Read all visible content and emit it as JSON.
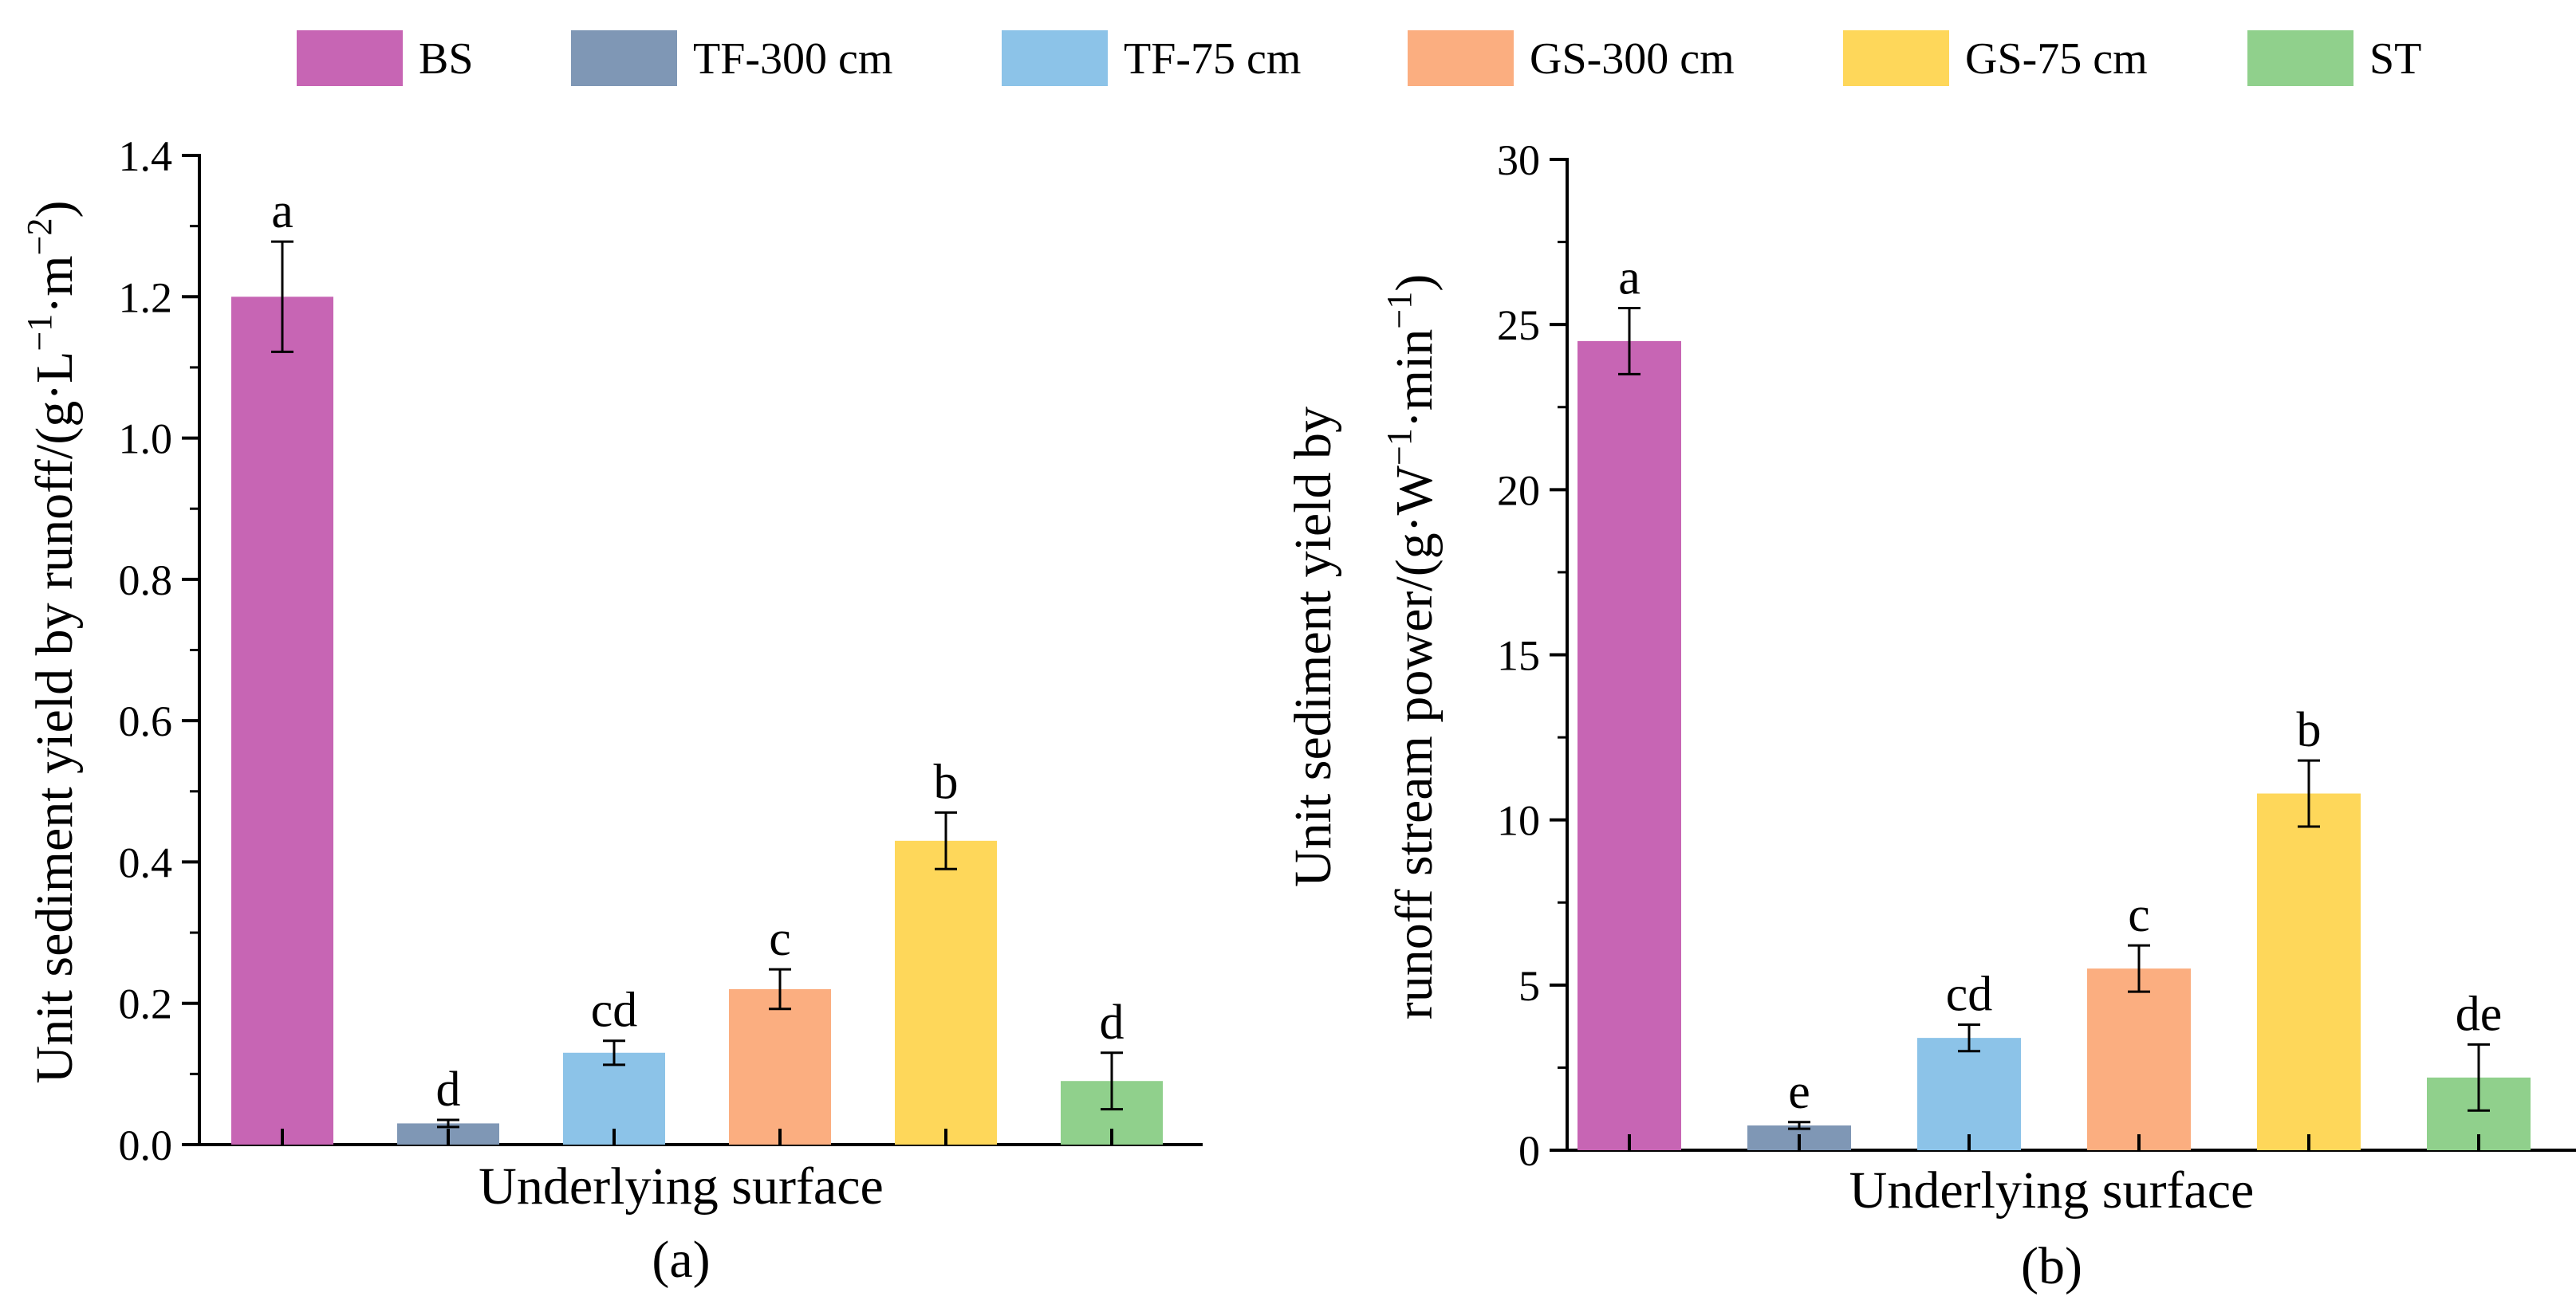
{
  "legend": {
    "entries": [
      "BS",
      "TF-300 cm",
      "TF-75 cm",
      "GS-300 cm",
      "GS-75 cm",
      "ST"
    ],
    "colors": [
      "#c765b4",
      "#7f97b5",
      "#8cc3e8",
      "#fbae80",
      "#fed75a",
      "#90d08c"
    ]
  },
  "chart_data": [
    {
      "type": "bar",
      "panel_label": "(a)",
      "xlabel": "Underlying surface",
      "ylabel_lines": [
        {
          "text": "Unit sediment yield by runoff/(g·L",
          "sup": "−1",
          "after": "·m",
          "sup2": "−2",
          "end": ")"
        }
      ],
      "ylim": [
        0,
        1.4
      ],
      "yticks": [
        0.0,
        0.2,
        0.4,
        0.6,
        0.8,
        1.0,
        1.2,
        1.4
      ],
      "ytick_labels": [
        "0.0",
        "0.2",
        "0.4",
        "0.6",
        "0.8",
        "1.0",
        "1.2",
        "1.4"
      ],
      "categories": [
        "BS",
        "TF-300 cm",
        "TF-75 cm",
        "GS-300 cm",
        "GS-75 cm",
        "ST"
      ],
      "values": [
        1.2,
        0.03,
        0.13,
        0.22,
        0.43,
        0.09
      ],
      "errors": [
        0.078,
        0.005,
        0.017,
        0.028,
        0.04,
        0.04
      ],
      "significance_letters": [
        "a",
        "d",
        "cd",
        "c",
        "b",
        "d"
      ]
    },
    {
      "type": "bar",
      "panel_label": "(b)",
      "xlabel": "Underlying surface",
      "ylabel_lines": [
        {
          "text": "Unit sediment yield by"
        },
        {
          "text": "runoff stream power/(g·W",
          "sup": "−1",
          "after": "·min",
          "sup2": "−1",
          "end": ")"
        }
      ],
      "ylim": [
        0,
        30
      ],
      "yticks": [
        0,
        5,
        10,
        15,
        20,
        25,
        30
      ],
      "ytick_labels": [
        "0",
        "5",
        "10",
        "15",
        "20",
        "25",
        "30"
      ],
      "categories": [
        "BS",
        "TF-300 cm",
        "TF-75 cm",
        "GS-300 cm",
        "GS-75 cm",
        "ST"
      ],
      "values": [
        24.5,
        0.75,
        3.4,
        5.5,
        10.8,
        2.2
      ],
      "errors": [
        1.0,
        0.1,
        0.4,
        0.7,
        1.0,
        1.0
      ],
      "significance_letters": [
        "a",
        "e",
        "cd",
        "c",
        "b",
        "de"
      ]
    }
  ]
}
